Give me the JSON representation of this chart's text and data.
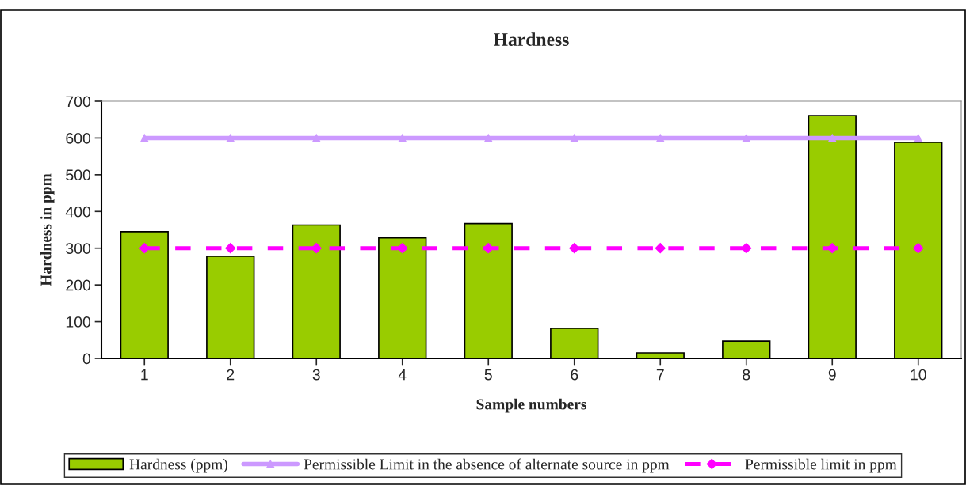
{
  "chart_data": {
    "type": "bar",
    "title": "Hardness",
    "xlabel": "Sample numbers",
    "ylabel": "Hardness in ppm",
    "categories": [
      "1",
      "2",
      "3",
      "4",
      "5",
      "6",
      "7",
      "8",
      "9",
      "10"
    ],
    "series": [
      {
        "name": "Hardness (ppm)",
        "color": "#99cc00",
        "values": [
          345,
          278,
          363,
          328,
          367,
          82,
          15,
          47,
          661,
          588
        ]
      },
      {
        "name": "Permissible Limit in the absence of alternate source in ppm",
        "type": "line",
        "color": "#cc99ff",
        "marker": "triangle",
        "line_style": "solid",
        "values": [
          600,
          600,
          600,
          600,
          600,
          600,
          600,
          600,
          600,
          600
        ]
      },
      {
        "name": "Permissible limit in ppm",
        "type": "line",
        "color": "#ff00ff",
        "marker": "diamond",
        "line_style": "dashed",
        "values": [
          300,
          300,
          300,
          300,
          300,
          300,
          300,
          300,
          300,
          300
        ]
      }
    ],
    "ylim": [
      0,
      700
    ],
    "yticks": [
      0,
      100,
      200,
      300,
      400,
      500,
      600,
      700
    ],
    "grid": false,
    "legend": "bottom"
  }
}
